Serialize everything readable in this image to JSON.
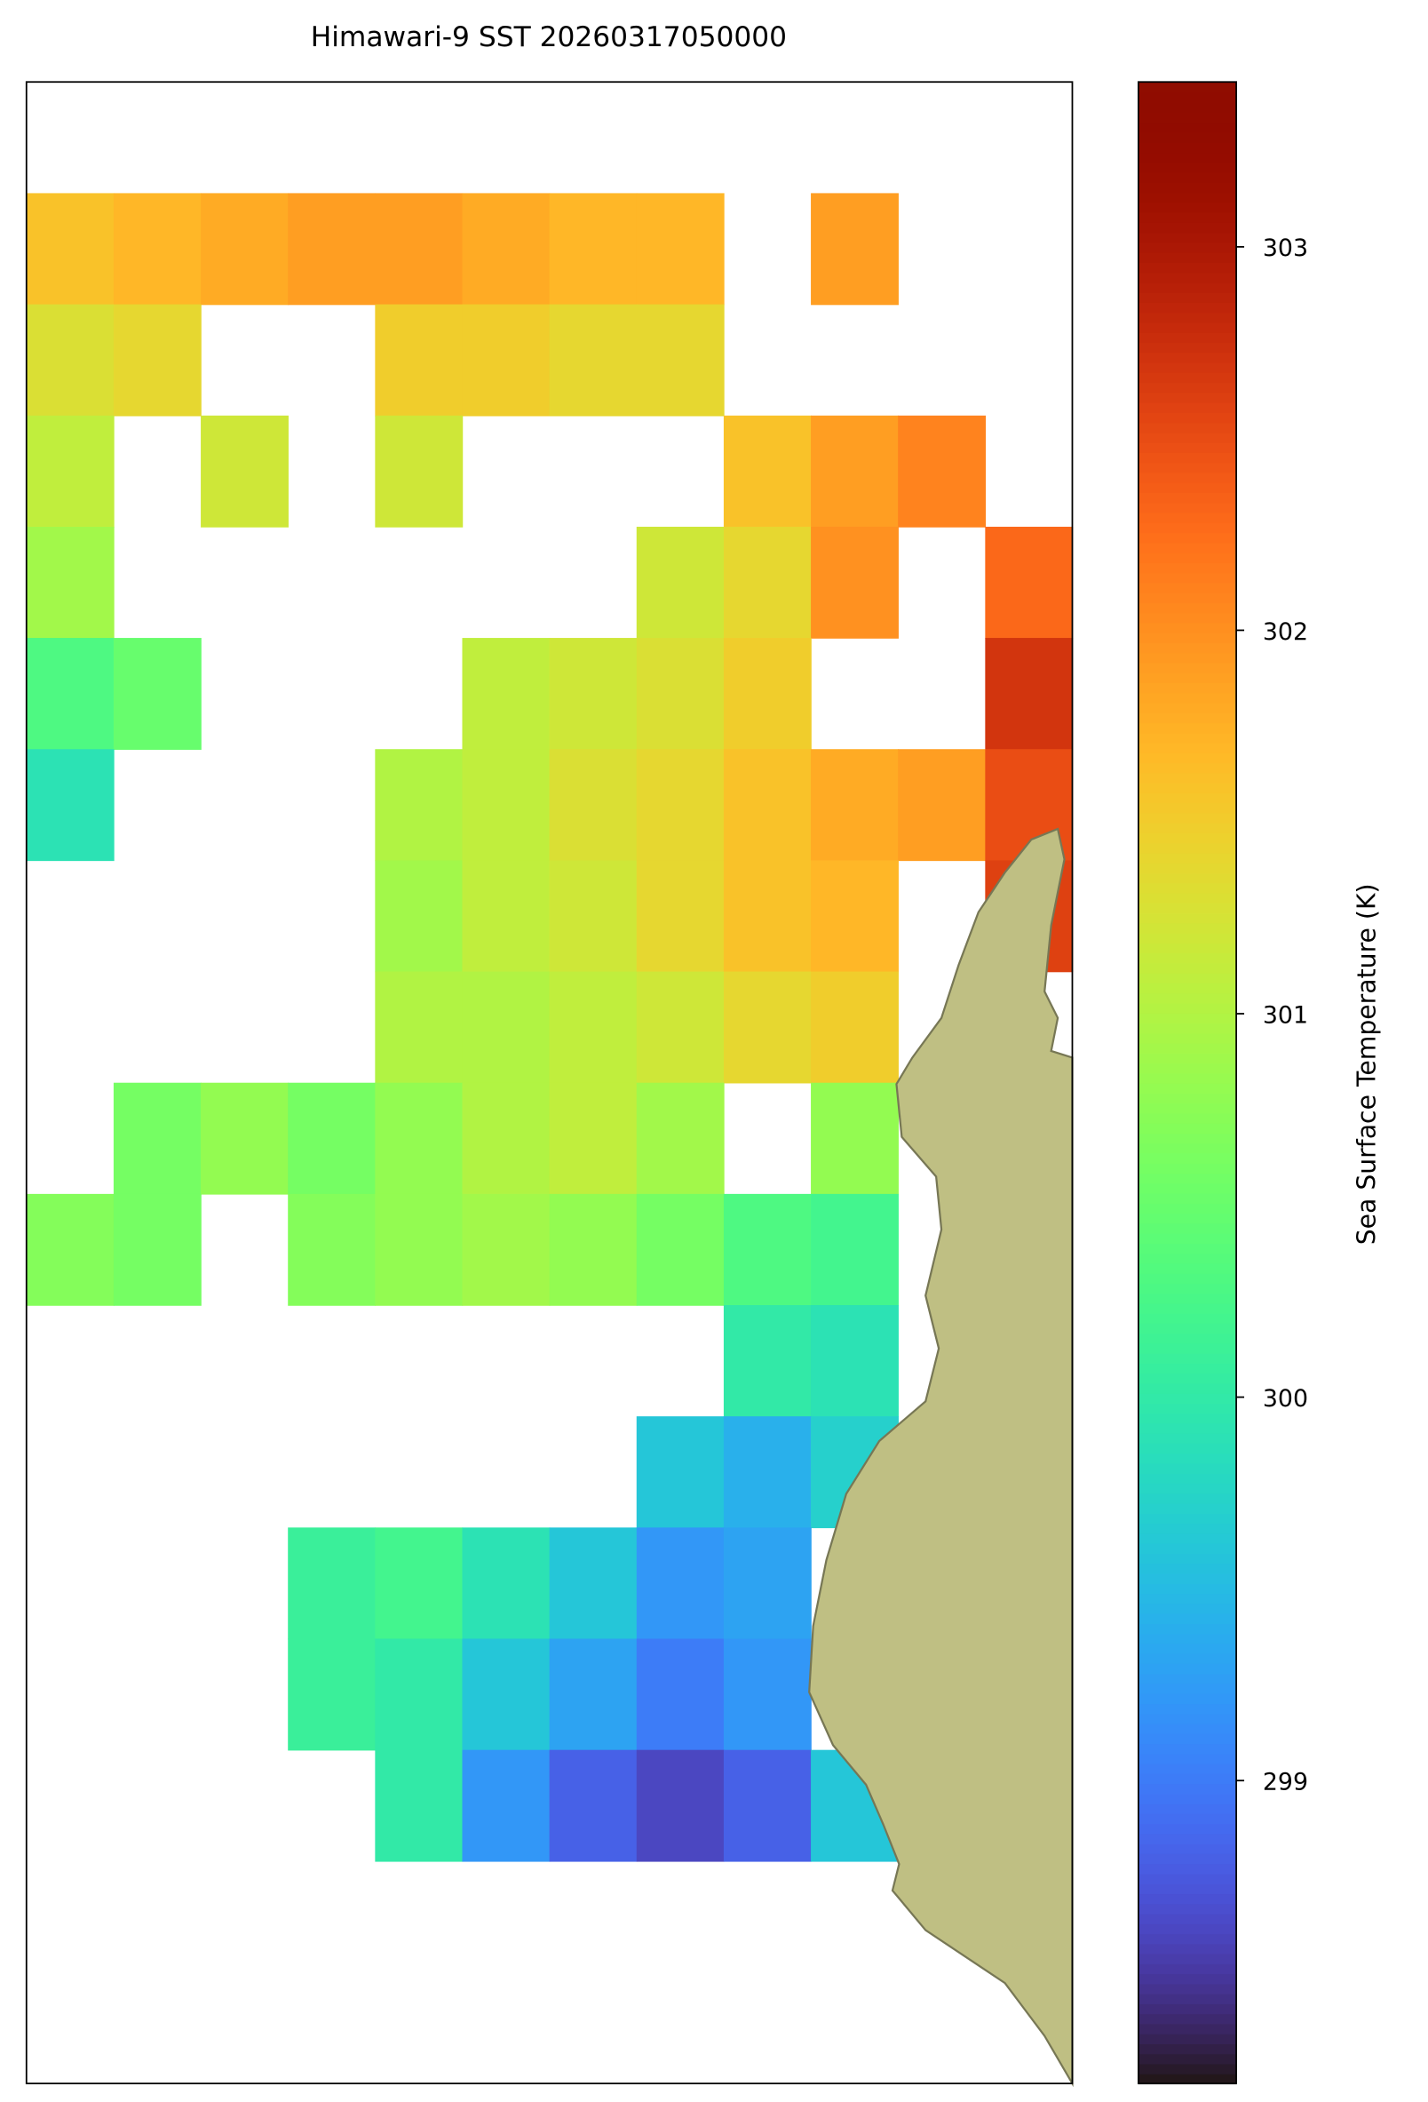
{
  "chart_data": {
    "type": "heatmap",
    "title": "Himawari-9 SST 20260317050000",
    "colorbar_label": "Sea Surface Temperature (K)",
    "colormap": "turbo",
    "zlim": [
      298.21,
      303.43
    ],
    "zticks": [
      299,
      300,
      301,
      302,
      303
    ],
    "values": [
      [
        null,
        null,
        null,
        null,
        null,
        null,
        null,
        null,
        null,
        null,
        null,
        null
      ],
      [
        301.6,
        301.7,
        301.8,
        301.9,
        301.9,
        301.8,
        301.7,
        301.7,
        null,
        301.9,
        null,
        null
      ],
      [
        301.3,
        301.4,
        null,
        null,
        301.5,
        301.5,
        301.4,
        301.4,
        null,
        null,
        null,
        null
      ],
      [
        301.1,
        null,
        301.2,
        null,
        301.2,
        null,
        null,
        null,
        301.6,
        301.9,
        302.1,
        null
      ],
      [
        300.9,
        null,
        null,
        null,
        null,
        null,
        null,
        301.2,
        301.4,
        302.0,
        null,
        302.3
      ],
      [
        300.3,
        300.5,
        null,
        null,
        null,
        301.1,
        301.2,
        301.3,
        301.5,
        null,
        null,
        302.7
      ],
      [
        299.9,
        null,
        null,
        null,
        301.0,
        301.1,
        301.3,
        301.4,
        301.6,
        301.8,
        301.9,
        302.5
      ],
      [
        null,
        null,
        null,
        null,
        300.9,
        301.1,
        301.2,
        301.4,
        301.6,
        301.7,
        null,
        302.6
      ],
      [
        null,
        null,
        null,
        null,
        301.0,
        301.0,
        301.1,
        301.2,
        301.4,
        301.5,
        null,
        null
      ],
      [
        null,
        300.6,
        300.8,
        300.6,
        300.8,
        301.0,
        301.1,
        300.9,
        null,
        300.8,
        null,
        null
      ],
      [
        300.7,
        300.6,
        null,
        300.7,
        300.8,
        300.9,
        300.8,
        300.6,
        300.3,
        300.2,
        null,
        null
      ],
      [
        null,
        null,
        null,
        null,
        null,
        null,
        null,
        null,
        300.0,
        299.9,
        null,
        null
      ],
      [
        null,
        null,
        null,
        null,
        null,
        null,
        null,
        299.6,
        299.4,
        299.7,
        null,
        null
      ],
      [
        null,
        null,
        null,
        300.1,
        300.2,
        299.9,
        299.6,
        299.2,
        299.3,
        null,
        null,
        null
      ],
      [
        null,
        null,
        null,
        300.1,
        300.0,
        299.6,
        299.3,
        299.0,
        299.2,
        null,
        null,
        null
      ],
      [
        null,
        null,
        null,
        null,
        300.0,
        299.2,
        298.8,
        298.6,
        298.8,
        299.6,
        null,
        null
      ],
      [
        null,
        null,
        null,
        null,
        null,
        null,
        null,
        null,
        null,
        null,
        null,
        null
      ],
      [
        null,
        null,
        null,
        null,
        null,
        null,
        null,
        null,
        null,
        null,
        null,
        null
      ]
    ]
  }
}
